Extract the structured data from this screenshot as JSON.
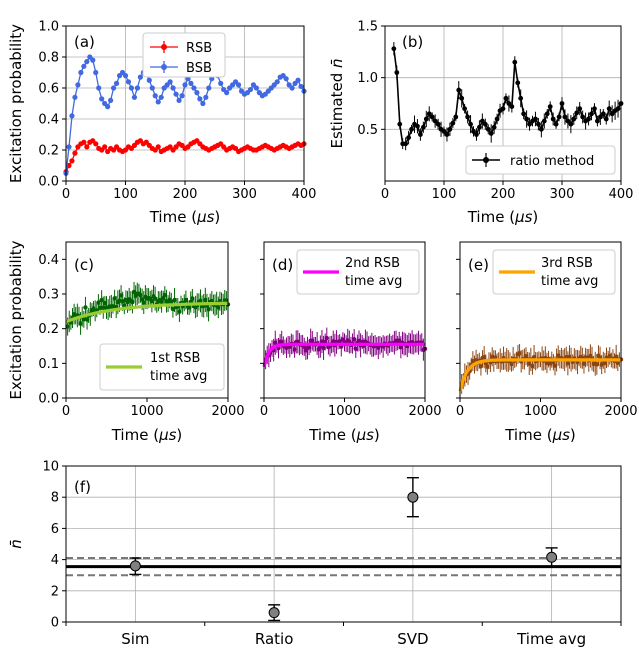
{
  "chart_data": [
    {
      "panel": "(a)",
      "type": "line",
      "xlabel": "Time (μs)",
      "ylabel": "Excitation probability",
      "xlim": [
        0,
        400
      ],
      "ylim": [
        0.0,
        1.0
      ],
      "xticks": [
        "0",
        "100",
        "200",
        "300",
        "400"
      ],
      "yticks": [
        "0.0",
        "0.2",
        "0.4",
        "0.6",
        "0.8",
        "1.0"
      ],
      "grid": true,
      "legend": "top-center",
      "series": [
        {
          "name": "RSB",
          "color": "#ff0000",
          "marker": "circle",
          "x": [
            0,
            5,
            10,
            15,
            20,
            25,
            30,
            35,
            40,
            45,
            50,
            55,
            60,
            65,
            70,
            75,
            80,
            85,
            90,
            95,
            100,
            105,
            110,
            115,
            120,
            125,
            130,
            135,
            140,
            145,
            150,
            155,
            160,
            165,
            170,
            175,
            180,
            185,
            190,
            195,
            200,
            205,
            210,
            215,
            220,
            225,
            230,
            235,
            240,
            245,
            250,
            255,
            260,
            265,
            270,
            275,
            280,
            285,
            290,
            295,
            300,
            305,
            310,
            315,
            320,
            325,
            330,
            335,
            340,
            345,
            350,
            355,
            360,
            365,
            370,
            375,
            380,
            385,
            390,
            395,
            400
          ],
          "y": [
            0.06,
            0.1,
            0.13,
            0.18,
            0.22,
            0.24,
            0.25,
            0.22,
            0.25,
            0.26,
            0.24,
            0.21,
            0.2,
            0.22,
            0.19,
            0.21,
            0.2,
            0.22,
            0.2,
            0.19,
            0.2,
            0.22,
            0.21,
            0.23,
            0.25,
            0.26,
            0.24,
            0.25,
            0.23,
            0.21,
            0.2,
            0.22,
            0.19,
            0.2,
            0.21,
            0.22,
            0.2,
            0.22,
            0.24,
            0.23,
            0.21,
            0.22,
            0.24,
            0.25,
            0.26,
            0.24,
            0.22,
            0.21,
            0.2,
            0.21,
            0.22,
            0.23,
            0.24,
            0.22,
            0.2,
            0.21,
            0.22,
            0.21,
            0.19,
            0.2,
            0.21,
            0.22,
            0.21,
            0.2,
            0.2,
            0.21,
            0.22,
            0.23,
            0.22,
            0.21,
            0.2,
            0.21,
            0.22,
            0.23,
            0.22,
            0.21,
            0.22,
            0.23,
            0.24,
            0.23,
            0.24
          ]
        },
        {
          "name": "BSB",
          "color": "#4169e1",
          "marker": "circle",
          "x": [
            0,
            5,
            10,
            15,
            20,
            25,
            30,
            35,
            40,
            45,
            50,
            55,
            60,
            65,
            70,
            75,
            80,
            85,
            90,
            95,
            100,
            105,
            110,
            115,
            120,
            125,
            130,
            135,
            140,
            145,
            150,
            155,
            160,
            165,
            170,
            175,
            180,
            185,
            190,
            195,
            200,
            205,
            210,
            215,
            220,
            225,
            230,
            235,
            240,
            245,
            250,
            255,
            260,
            265,
            270,
            275,
            280,
            285,
            290,
            295,
            300,
            305,
            310,
            315,
            320,
            325,
            330,
            335,
            340,
            345,
            350,
            355,
            360,
            365,
            370,
            375,
            380,
            385,
            390,
            395,
            400
          ],
          "y": [
            0.05,
            0.22,
            0.42,
            0.54,
            0.62,
            0.7,
            0.74,
            0.77,
            0.8,
            0.78,
            0.7,
            0.6,
            0.53,
            0.5,
            0.48,
            0.52,
            0.6,
            0.63,
            0.68,
            0.7,
            0.68,
            0.64,
            0.6,
            0.54,
            0.6,
            0.67,
            0.7,
            0.69,
            0.65,
            0.6,
            0.55,
            0.51,
            0.54,
            0.6,
            0.62,
            0.64,
            0.6,
            0.56,
            0.52,
            0.55,
            0.62,
            0.66,
            0.63,
            0.6,
            0.57,
            0.53,
            0.5,
            0.54,
            0.6,
            0.66,
            0.69,
            0.68,
            0.63,
            0.59,
            0.57,
            0.6,
            0.62,
            0.64,
            0.62,
            0.58,
            0.56,
            0.57,
            0.59,
            0.62,
            0.6,
            0.57,
            0.55,
            0.56,
            0.58,
            0.6,
            0.62,
            0.64,
            0.67,
            0.68,
            0.66,
            0.62,
            0.6,
            0.63,
            0.65,
            0.61,
            0.58
          ]
        }
      ]
    },
    {
      "panel": "(b)",
      "type": "line",
      "xlabel": "Time (μs)",
      "ylabel": "Estimated n̄",
      "xlim": [
        0,
        400
      ],
      "ylim": [
        0.0,
        1.5
      ],
      "xticks": [
        "0",
        "100",
        "200",
        "300",
        "400"
      ],
      "yticks": [
        "0.5",
        "1.0",
        "1.5"
      ],
      "grid": true,
      "legend": "bottom-right",
      "series": [
        {
          "name": "ratio method",
          "color": "#000000",
          "marker": "circle",
          "x": [
            15,
            20,
            25,
            30,
            35,
            40,
            45,
            50,
            55,
            60,
            65,
            70,
            75,
            80,
            85,
            90,
            95,
            100,
            105,
            110,
            115,
            120,
            125,
            130,
            135,
            140,
            145,
            150,
            155,
            160,
            165,
            170,
            175,
            180,
            185,
            190,
            195,
            200,
            205,
            210,
            215,
            220,
            225,
            230,
            235,
            240,
            245,
            250,
            255,
            260,
            265,
            270,
            275,
            280,
            285,
            290,
            295,
            300,
            305,
            310,
            315,
            320,
            325,
            330,
            335,
            340,
            345,
            350,
            355,
            360,
            365,
            370,
            375,
            380,
            385,
            390,
            395,
            400
          ],
          "y": [
            1.28,
            1.05,
            0.55,
            0.36,
            0.36,
            0.42,
            0.5,
            0.55,
            0.53,
            0.45,
            0.52,
            0.6,
            0.65,
            0.62,
            0.58,
            0.55,
            0.5,
            0.48,
            0.45,
            0.5,
            0.56,
            0.62,
            0.88,
            0.8,
            0.7,
            0.62,
            0.55,
            0.48,
            0.45,
            0.52,
            0.58,
            0.55,
            0.5,
            0.46,
            0.52,
            0.6,
            0.68,
            0.7,
            0.8,
            0.75,
            0.72,
            1.15,
            0.95,
            0.8,
            0.65,
            0.6,
            0.55,
            0.58,
            0.6,
            0.55,
            0.5,
            0.58,
            0.65,
            0.72,
            0.6,
            0.55,
            0.62,
            0.75,
            0.62,
            0.58,
            0.55,
            0.6,
            0.66,
            0.7,
            0.62,
            0.58,
            0.6,
            0.65,
            0.7,
            0.58,
            0.62,
            0.65,
            0.6,
            0.7,
            0.65,
            0.68,
            0.7,
            0.75
          ]
        }
      ]
    },
    {
      "panel": "(c)",
      "type": "scatter",
      "xlabel": "Time (μs)",
      "ylabel": "Excitation probability",
      "xlim": [
        0,
        2000
      ],
      "ylim": [
        0.0,
        0.45
      ],
      "xticks": [
        "0",
        "1000",
        "2000"
      ],
      "yticks": [
        "0.0",
        "0.1",
        "0.2",
        "0.3",
        "0.4"
      ],
      "legend": "bottom-right",
      "data_color": "#006400",
      "fit": {
        "name": "1st RSB time avg",
        "color": "#9acd32",
        "model": "saturating",
        "start": 0.22,
        "end": 0.275,
        "tau": 600
      },
      "mean": 0.27,
      "noise": 0.035
    },
    {
      "panel": "(d)",
      "type": "scatter",
      "xlabel": "Time (μs)",
      "ylabel": "",
      "xlim": [
        0,
        2000
      ],
      "ylim": [
        0.0,
        0.45
      ],
      "xticks": [
        "0",
        "1000",
        "2000"
      ],
      "legend": "top-right",
      "data_color": "#800080",
      "fit": {
        "name": "2nd RSB time avg",
        "color": "#ff00ff",
        "model": "saturating",
        "start": 0.09,
        "end": 0.155,
        "tau": 60
      },
      "mean": 0.15,
      "noise": 0.025
    },
    {
      "panel": "(e)",
      "type": "scatter",
      "xlabel": "Time (μs)",
      "ylabel": "",
      "xlim": [
        0,
        2000
      ],
      "ylim": [
        0.0,
        0.45
      ],
      "xticks": [
        "0",
        "1000",
        "2000"
      ],
      "legend": "top-right",
      "data_color": "#8b4513",
      "fit": {
        "name": "3rd RSB time avg",
        "color": "#ffa500",
        "model": "saturating",
        "start": 0.02,
        "end": 0.11,
        "tau": 90
      },
      "mean": 0.11,
      "noise": 0.025
    },
    {
      "panel": "(f)",
      "type": "scatter",
      "xlabel": "",
      "ylabel": "n̄",
      "ylim": [
        0,
        10
      ],
      "yticks": [
        "0",
        "2",
        "4",
        "6",
        "8",
        "10"
      ],
      "categories": [
        "Sim",
        "Ratio",
        "SVD",
        "Time avg"
      ],
      "values": [
        3.6,
        0.6,
        8.0,
        4.15
      ],
      "errors": [
        [
          0.55,
          0.5
        ],
        [
          0.5,
          0.5
        ],
        [
          1.25,
          1.25
        ],
        [
          0.6,
          0.6
        ]
      ],
      "reference_line": 3.55,
      "reference_band": [
        3.0,
        4.1
      ],
      "grid": true
    }
  ]
}
